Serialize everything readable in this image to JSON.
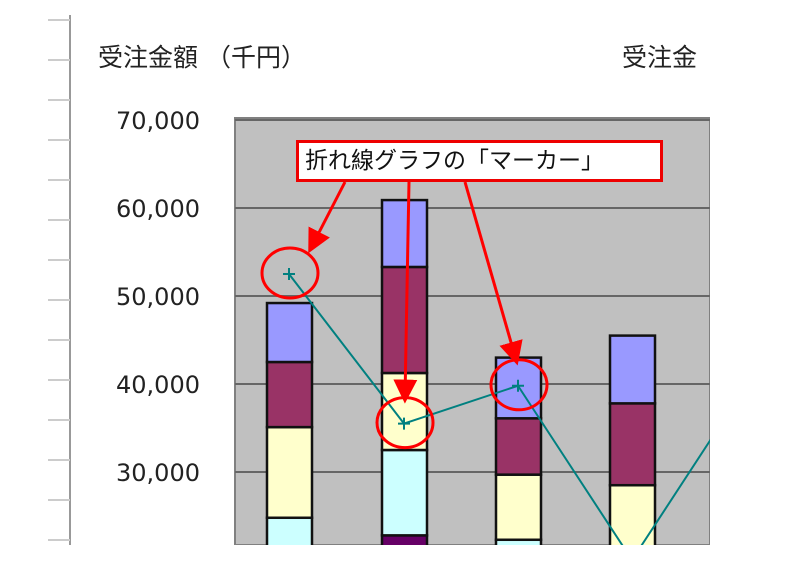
{
  "chart_data": {
    "type": "bar",
    "subtype": "stacked-bar-with-line",
    "title": "受注金額 （千円）",
    "title_right_partial": "受注金",
    "ylim": [
      21700,
      70000
    ],
    "yticks": [
      30000,
      40000,
      50000,
      60000,
      70000
    ],
    "ytick_labels": [
      "30,000",
      "40,000",
      "50,000",
      "60,000",
      "70,000"
    ],
    "grid": true,
    "plot_background": "#c0c0c0",
    "series_colors": [
      "#660066",
      "#ccffff",
      "#ffffcc",
      "#993366",
      "#9999ff"
    ],
    "bars": [
      {
        "segments": [
          [
            null,
            24800,
            1
          ],
          [
            24800,
            35100,
            2
          ],
          [
            35100,
            42500,
            3
          ],
          [
            42500,
            49200,
            4
          ]
        ]
      },
      {
        "segments": [
          [
            null,
            22800,
            0
          ],
          [
            22800,
            32500,
            1
          ],
          [
            32500,
            41250,
            2
          ],
          [
            41250,
            53300,
            3
          ],
          [
            53300,
            60900,
            4
          ]
        ]
      },
      {
        "segments": [
          [
            null,
            22300,
            1
          ],
          [
            22300,
            29700,
            2
          ],
          [
            29700,
            36100,
            3
          ],
          [
            36100,
            43000,
            4
          ]
        ]
      },
      {
        "segments": [
          [
            null,
            28500,
            2
          ],
          [
            28500,
            37800,
            3
          ],
          [
            37800,
            45500,
            4
          ]
        ]
      }
    ],
    "line": {
      "color": "#008080",
      "marker": "plus",
      "values": [
        52500,
        35500,
        39800,
        20000,
        40000
      ]
    },
    "annotation": {
      "text": "折れ線グラフの「マーカー」",
      "color": "#ff0000",
      "highlighted_points": [
        0,
        1,
        2
      ]
    }
  }
}
